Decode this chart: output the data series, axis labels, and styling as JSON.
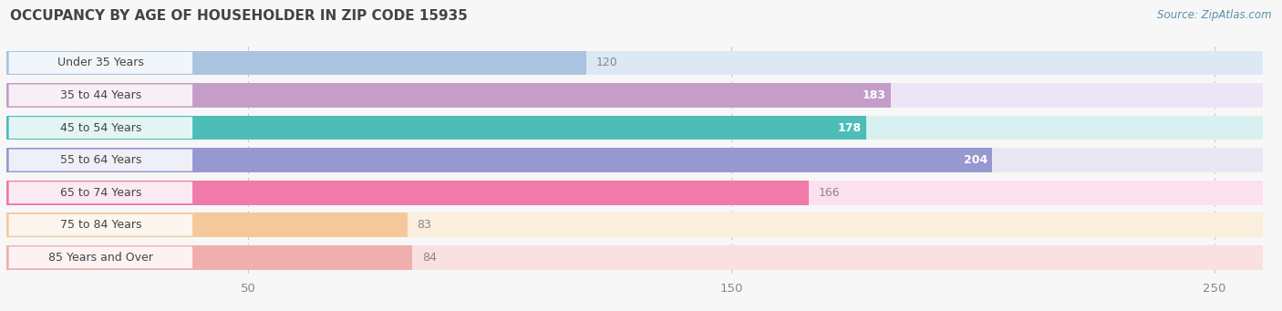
{
  "title": "OCCUPANCY BY AGE OF HOUSEHOLDER IN ZIP CODE 15935",
  "source": "Source: ZipAtlas.com",
  "categories": [
    "Under 35 Years",
    "35 to 44 Years",
    "45 to 54 Years",
    "55 to 64 Years",
    "65 to 74 Years",
    "75 to 84 Years",
    "85 Years and Over"
  ],
  "values": [
    120,
    183,
    178,
    204,
    166,
    83,
    84
  ],
  "bar_colors": [
    "#a8c4e0",
    "#c49ec8",
    "#4dbdb8",
    "#9898d0",
    "#f07aaa",
    "#f5c89a",
    "#f0aeae"
  ],
  "bar_bg_colors": [
    "#dde8f5",
    "#ede5f5",
    "#d8f0f0",
    "#e8e8f5",
    "#fce0ee",
    "#faeedd",
    "#fae0e0"
  ],
  "label_colors": [
    "#777777",
    "#ffffff",
    "#ffffff",
    "#ffffff",
    "#777777",
    "#777777",
    "#777777"
  ],
  "xmin": 0,
  "xmax": 260,
  "xticks": [
    50,
    150,
    250
  ],
  "title_fontsize": 11,
  "source_fontsize": 8.5,
  "label_fontsize": 9,
  "value_fontsize": 9,
  "background_color": "#f7f7f7"
}
